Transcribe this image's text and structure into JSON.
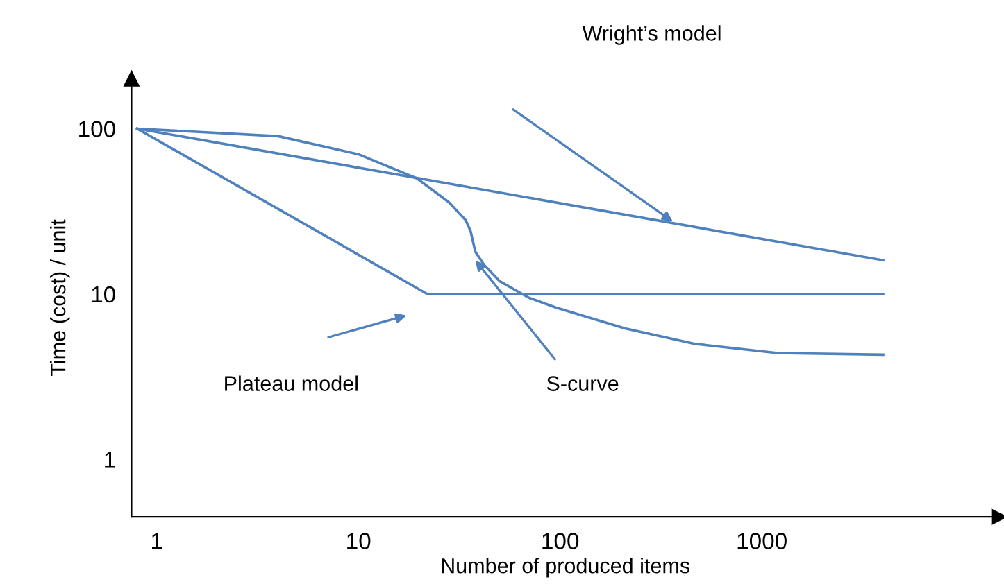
{
  "chart_data": {
    "type": "line",
    "xlabel": "Number of produced items",
    "ylabel": "Time (cost) / unit",
    "log": "xy",
    "xlim": [
      0.75,
      15000
    ],
    "ylim": [
      0.45,
      200
    ],
    "xticks": [
      1,
      10,
      100,
      1000
    ],
    "yticks": [
      1,
      10,
      100
    ],
    "grid": false,
    "legend": false,
    "marker": "none",
    "line_style": "solid",
    "series": [
      {
        "color": "#4f81bd",
        "x": [
          0.8,
          4000
        ],
        "values": [
          100,
          16
        ]
      },
      {
        "color": "#4f81bd",
        "x": [
          0.8,
          22,
          4000
        ],
        "values": [
          100,
          10,
          10
        ]
      },
      {
        "color": "#4f81bd",
        "x": [
          0.8,
          4,
          10,
          19.5,
          28,
          34,
          36,
          38,
          42,
          50,
          70,
          95,
          210,
          465,
          1200,
          4000
        ],
        "values": [
          100,
          90,
          70,
          50,
          36,
          28,
          24,
          18,
          15,
          12,
          9.5,
          8.3,
          6.2,
          5,
          4.4,
          4.3
        ]
      }
    ],
    "annotations": [
      "Wright’s model",
      "Plateau model",
      {
        "text": "S-curve",
        "x": 38,
        "y": 16
      }
    ]
  }
}
